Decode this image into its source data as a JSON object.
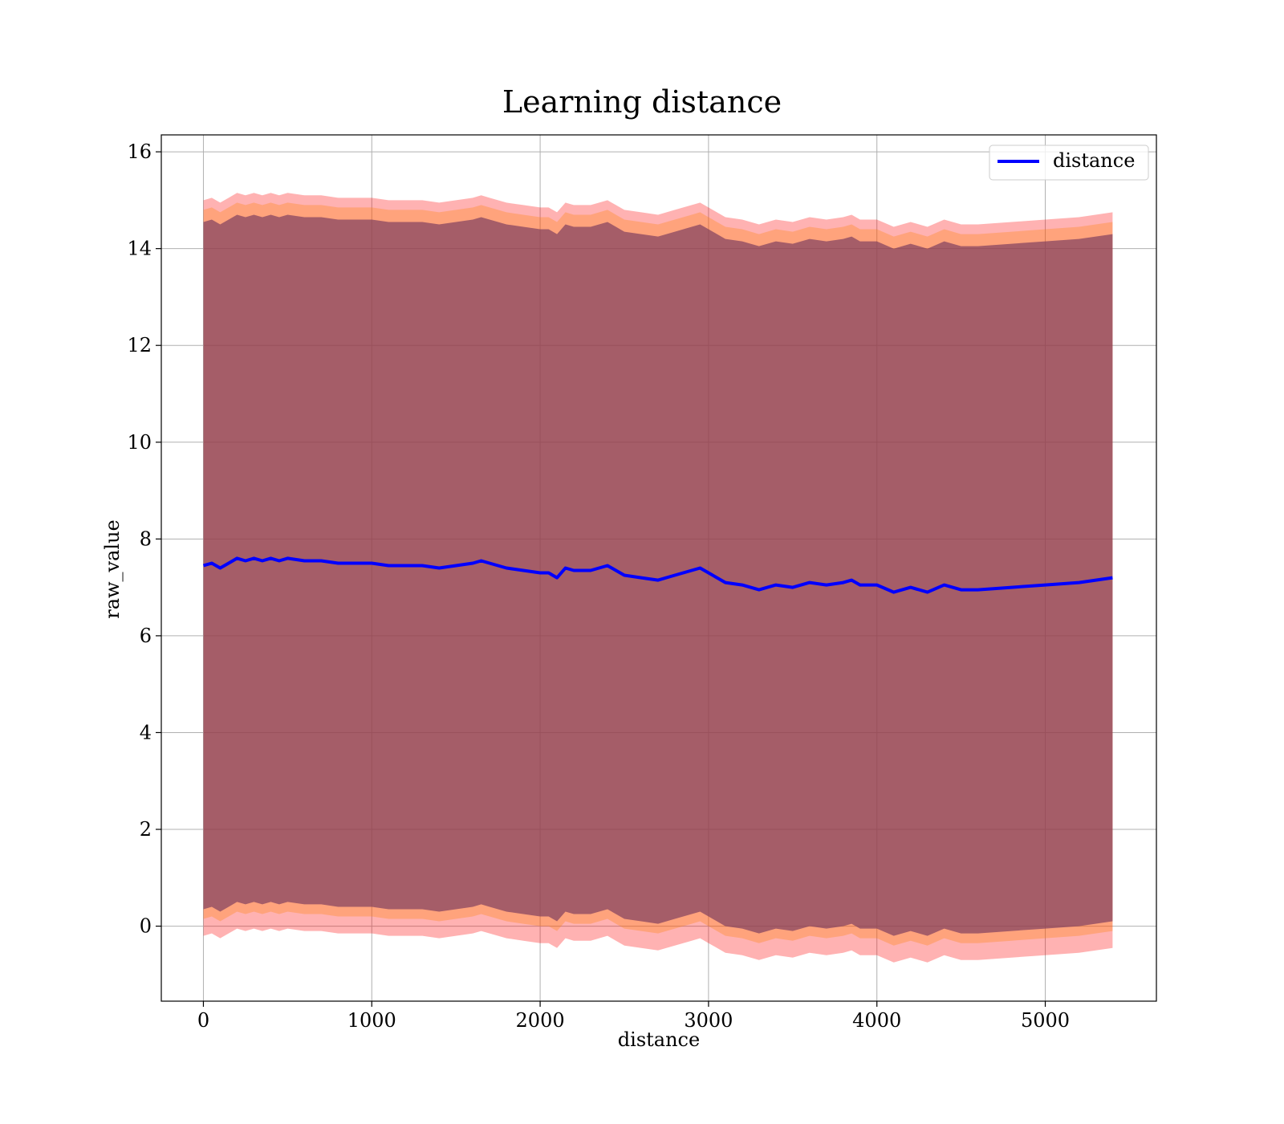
{
  "chart_data": {
    "type": "line",
    "title": "Learning distance",
    "xlabel": "distance",
    "ylabel": "raw_value",
    "xlim": [
      -250,
      5660
    ],
    "ylim": [
      -1.55,
      16.35
    ],
    "xticks": [
      0,
      1000,
      2000,
      3000,
      4000,
      5000
    ],
    "yticks": [
      0,
      2,
      4,
      6,
      8,
      10,
      12,
      14,
      16
    ],
    "grid": true,
    "legend": {
      "position": "top-right",
      "entries": [
        "distance"
      ]
    },
    "colors": {
      "line": "#0000ff",
      "band_outer": "#ff0000",
      "band_middle": "#ff8000",
      "band_inner": "#7f3f5f"
    },
    "series": [
      {
        "name": "distance",
        "x": [
          0,
          50,
          100,
          150,
          200,
          250,
          300,
          350,
          400,
          450,
          500,
          600,
          700,
          800,
          900,
          1000,
          1100,
          1200,
          1300,
          1400,
          1500,
          1600,
          1650,
          1700,
          1800,
          1900,
          2000,
          2050,
          2100,
          2150,
          2200,
          2300,
          2400,
          2450,
          2500,
          2600,
          2700,
          2800,
          2900,
          2950,
          3000,
          3100,
          3200,
          3300,
          3400,
          3500,
          3600,
          3700,
          3800,
          3850,
          3900,
          4000,
          4100,
          4200,
          4300,
          4400,
          4500,
          4600,
          4800,
          5000,
          5200,
          5400
        ],
        "y": [
          7.45,
          7.5,
          7.4,
          7.5,
          7.6,
          7.55,
          7.6,
          7.55,
          7.6,
          7.55,
          7.6,
          7.55,
          7.55,
          7.5,
          7.5,
          7.5,
          7.45,
          7.45,
          7.45,
          7.4,
          7.45,
          7.5,
          7.55,
          7.5,
          7.4,
          7.35,
          7.3,
          7.3,
          7.2,
          7.4,
          7.35,
          7.35,
          7.45,
          7.35,
          7.25,
          7.2,
          7.15,
          7.25,
          7.35,
          7.4,
          7.3,
          7.1,
          7.05,
          6.95,
          7.05,
          7.0,
          7.1,
          7.05,
          7.1,
          7.15,
          7.05,
          7.05,
          6.9,
          7.0,
          6.9,
          7.05,
          6.95,
          6.95,
          7.0,
          7.05,
          7.1,
          7.2
        ]
      }
    ],
    "bands": [
      {
        "color": "band_outer",
        "offset_upper": 7.55,
        "offset_lower": 7.65,
        "opacity": 0.3
      },
      {
        "color": "band_middle",
        "offset_upper": 7.35,
        "offset_lower": 7.3,
        "opacity": 0.3
      },
      {
        "color": "band_inner",
        "offset_upper": 7.1,
        "offset_lower": 7.1,
        "opacity": 0.7
      }
    ]
  }
}
